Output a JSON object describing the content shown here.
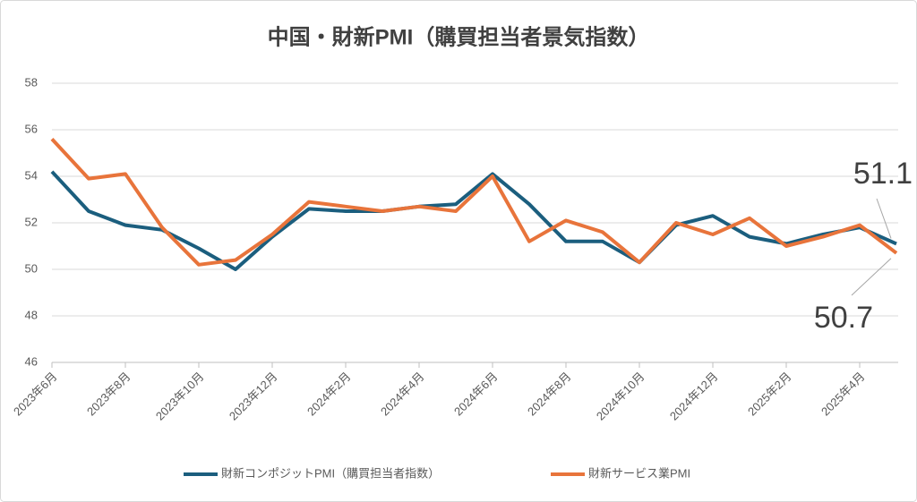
{
  "chart_data": {
    "type": "line",
    "title": "中国・財新PMI（購買担当者景気指数）",
    "categories": [
      "2023年6月",
      null,
      "2023年8月",
      null,
      "2023年10月",
      null,
      "2023年12月",
      null,
      "2024年2月",
      null,
      "2024年4月",
      null,
      "2024年6月",
      null,
      "2024年8月",
      null,
      "2024年10月",
      null,
      "2024年12月",
      null,
      "2025年2月",
      null,
      "2025年4月",
      null
    ],
    "series": [
      {
        "name": "財新コンポジットPMI（購買担当者指数）",
        "color": "#1b5e7e",
        "values": [
          54.2,
          52.5,
          51.9,
          51.7,
          50.9,
          50.0,
          51.4,
          52.6,
          52.5,
          52.5,
          52.7,
          52.8,
          54.1,
          52.8,
          51.2,
          51.2,
          50.3,
          51.9,
          52.3,
          51.4,
          51.1,
          51.5,
          51.8,
          51.1
        ]
      },
      {
        "name": "財新サービス業PMI",
        "color": "#e8743b",
        "values": [
          55.6,
          53.9,
          54.1,
          51.8,
          50.2,
          50.4,
          51.5,
          52.9,
          52.7,
          52.5,
          52.7,
          52.5,
          54.0,
          51.2,
          52.1,
          51.6,
          50.3,
          52.0,
          51.5,
          52.2,
          51.0,
          51.4,
          51.9,
          50.7
        ]
      }
    ],
    "ylim": [
      46,
      58
    ],
    "yticks": [
      46,
      48,
      50,
      52,
      54,
      56,
      58
    ],
    "grid": true
  }
}
